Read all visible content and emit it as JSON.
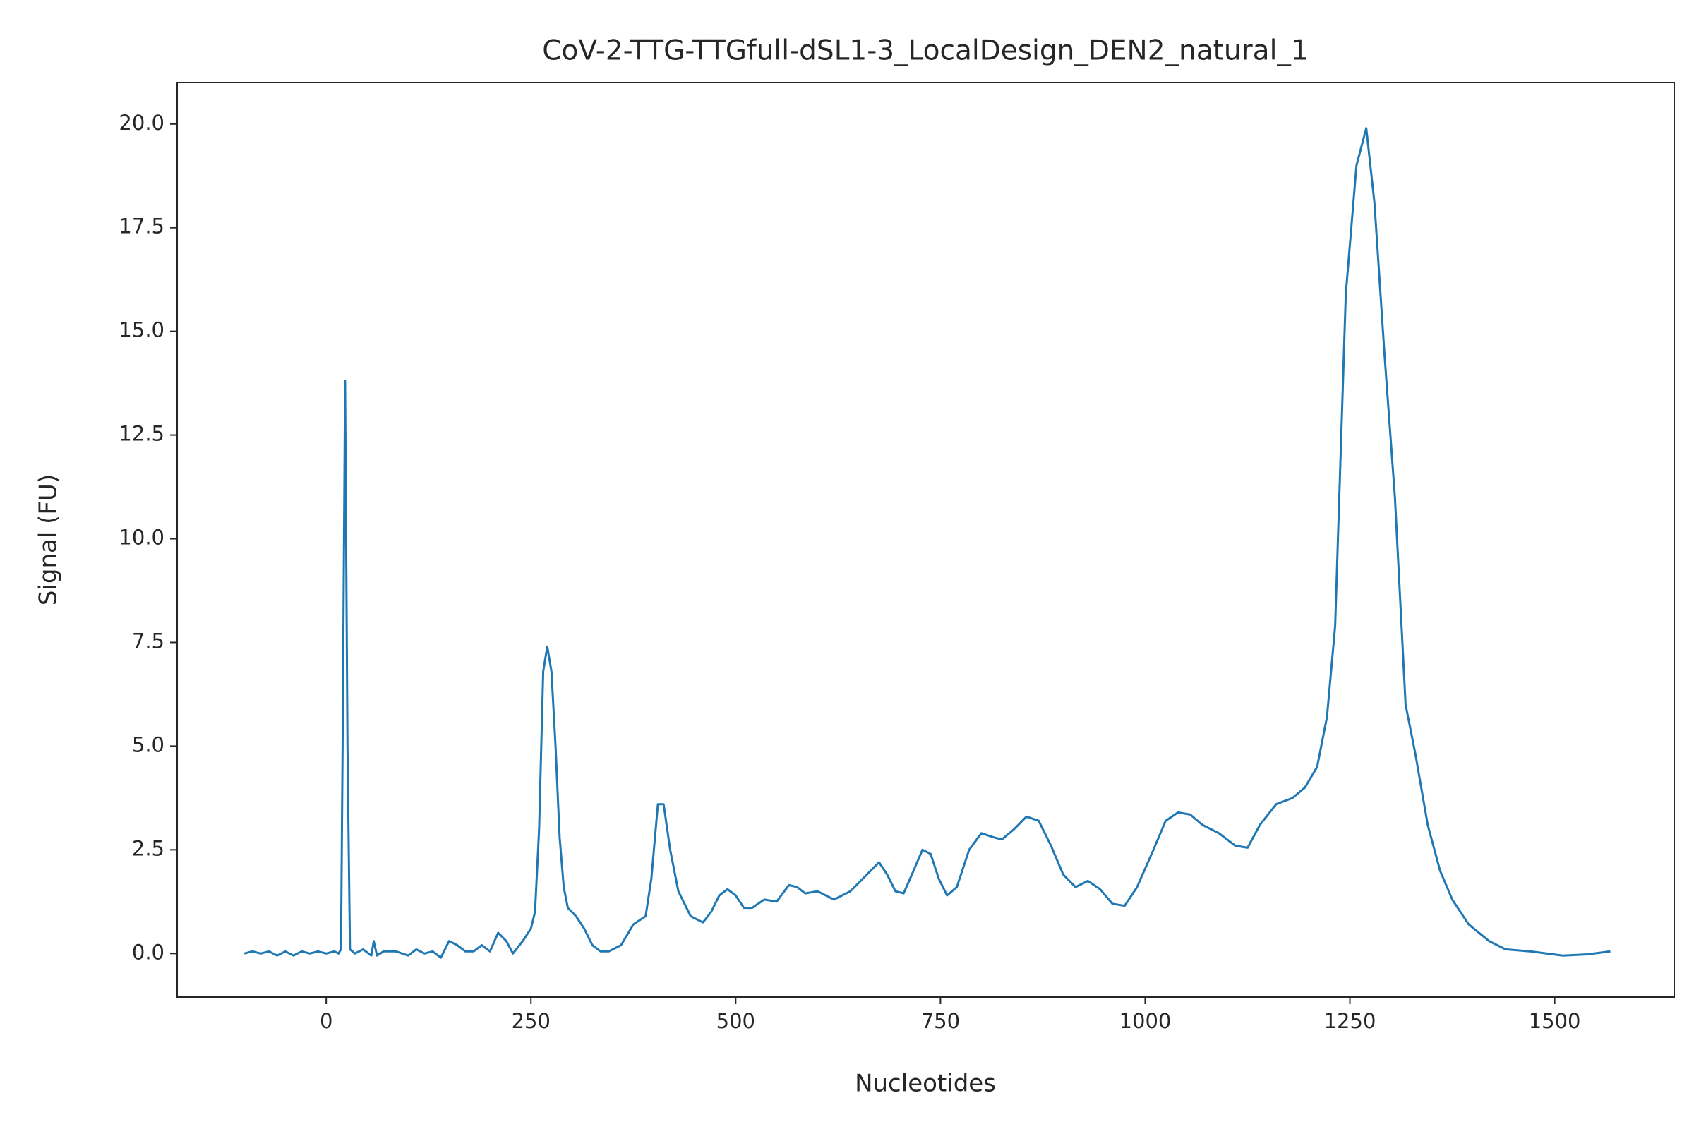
{
  "chart_data": {
    "type": "line",
    "title": "CoV-2-TTG-TTGfull-dSL1-3_LocalDesign_DEN2_natural_1",
    "x_label": "Nucleotides",
    "y_label": "Signal (FU)",
    "xlim": [
      -182,
      1646
    ],
    "ylim": [
      -1.05,
      21.0
    ],
    "xticks": [
      0,
      250,
      500,
      750,
      1000,
      1250,
      1500
    ],
    "yticks": [
      {
        "value": 0,
        "label": "0.0"
      },
      {
        "value": 2.5,
        "label": "2.5"
      },
      {
        "value": 5,
        "label": "5.0"
      },
      {
        "value": 7.5,
        "label": "7.5"
      },
      {
        "value": 10,
        "label": "10.0"
      },
      {
        "value": 12.5,
        "label": "12.5"
      },
      {
        "value": 15,
        "label": "15.0"
      },
      {
        "value": 17.5,
        "label": "17.5"
      },
      {
        "value": 20,
        "label": "20.0"
      }
    ],
    "grid": false,
    "series": [
      {
        "color": "#1f77b4",
        "x": [
          -100,
          -90,
          -80,
          -70,
          -60,
          -50,
          -40,
          -30,
          -20,
          -10,
          0,
          10,
          15,
          18,
          20,
          23,
          26,
          29,
          35,
          45,
          55,
          58,
          62,
          70,
          85,
          100,
          110,
          120,
          130,
          140,
          150,
          160,
          170,
          180,
          190,
          200,
          210,
          220,
          228,
          240,
          250,
          255,
          260,
          265,
          270,
          275,
          280,
          285,
          290,
          295,
          305,
          315,
          325,
          335,
          345,
          360,
          375,
          390,
          397,
          405,
          412,
          420,
          430,
          445,
          460,
          470,
          480,
          490,
          500,
          510,
          520,
          535,
          550,
          565,
          575,
          585,
          600,
          620,
          640,
          660,
          675,
          685,
          695,
          705,
          715,
          728,
          738,
          748,
          758,
          770,
          785,
          800,
          815,
          825,
          840,
          855,
          870,
          885,
          900,
          915,
          930,
          945,
          960,
          975,
          990,
          1010,
          1025,
          1040,
          1055,
          1070,
          1090,
          1110,
          1125,
          1140,
          1160,
          1180,
          1195,
          1210,
          1222,
          1232,
          1245,
          1258,
          1270,
          1280,
          1292,
          1305,
          1318,
          1330,
          1345,
          1360,
          1375,
          1395,
          1420,
          1440,
          1470,
          1490,
          1510,
          1540,
          1568
        ],
        "values": [
          0,
          0.05,
          0,
          0.05,
          -0.05,
          0.05,
          -0.05,
          0.05,
          0,
          0.05,
          0,
          0.05,
          0,
          0.1,
          5,
          13.8,
          5,
          0.1,
          0,
          0.1,
          -0.05,
          0.3,
          -0.05,
          0.05,
          0.05,
          -0.05,
          0.1,
          0,
          0.05,
          -0.1,
          0.3,
          0.2,
          0.05,
          0.05,
          0.2,
          0.05,
          0.5,
          0.3,
          0,
          0.3,
          0.6,
          1.0,
          3,
          6.8,
          7.4,
          6.8,
          5,
          2.8,
          1.6,
          1.1,
          0.9,
          0.6,
          0.2,
          0.05,
          0.05,
          0.2,
          0.7,
          0.9,
          1.8,
          3.6,
          3.6,
          2.5,
          1.5,
          0.9,
          0.75,
          1.0,
          1.4,
          1.55,
          1.4,
          1.1,
          1.1,
          1.3,
          1.25,
          1.65,
          1.6,
          1.45,
          1.5,
          1.3,
          1.5,
          1.9,
          2.2,
          1.9,
          1.5,
          1.45,
          1.9,
          2.5,
          2.4,
          1.8,
          1.4,
          1.6,
          2.5,
          2.9,
          2.8,
          2.75,
          3.0,
          3.3,
          3.2,
          2.6,
          1.9,
          1.6,
          1.75,
          1.55,
          1.2,
          1.15,
          1.6,
          2.5,
          3.2,
          3.4,
          3.35,
          3.1,
          2.9,
          2.6,
          2.55,
          3.1,
          3.6,
          3.75,
          4.0,
          4.5,
          5.7,
          7.9,
          15.9,
          19.0,
          19.9,
          18.1,
          14.5,
          11,
          6,
          4.8,
          3.1,
          2.0,
          1.3,
          0.7,
          0.3,
          0.1,
          0.05,
          0,
          -0.05,
          -0.02,
          0.05
        ]
      }
    ]
  }
}
